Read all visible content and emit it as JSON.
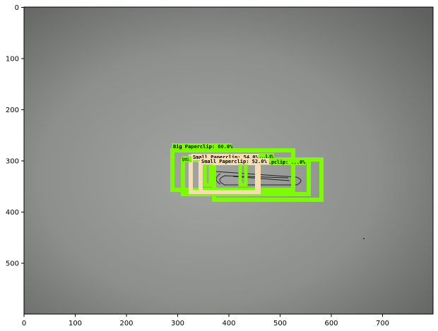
{
  "axes": {
    "x_ticks": [
      "0",
      "100",
      "200",
      "300",
      "400",
      "500",
      "600",
      "700"
    ],
    "y_ticks": [
      "0",
      "100",
      "200",
      "300",
      "400",
      "500"
    ]
  },
  "colors": {
    "big_box": "#7cfc00",
    "small_box": "#f5deb3",
    "photo_center": "#9fa19e",
    "photo_edge": "#616361"
  },
  "detections": [
    {
      "class": "Big Paperclip",
      "label": "Big Paperclip: 60.0%",
      "score": 60.0
    },
    {
      "class": "Big Paperclip",
      "label": "Big Paperclip: ...",
      "score": null
    },
    {
      "class": "Small Paperclip",
      "label": "Small Paperclip: 54.0%",
      "score": 54.0
    },
    {
      "class": "Small Paperclip",
      "label": "Small Paperclip: 52.0%",
      "score": 52.0
    },
    {
      "class": "Big Paperclip",
      "label": "...5.0%",
      "score": 55.0
    },
    {
      "class": "Big Paperclip",
      "label": "...pclip: ...0%",
      "score": null
    }
  ]
}
